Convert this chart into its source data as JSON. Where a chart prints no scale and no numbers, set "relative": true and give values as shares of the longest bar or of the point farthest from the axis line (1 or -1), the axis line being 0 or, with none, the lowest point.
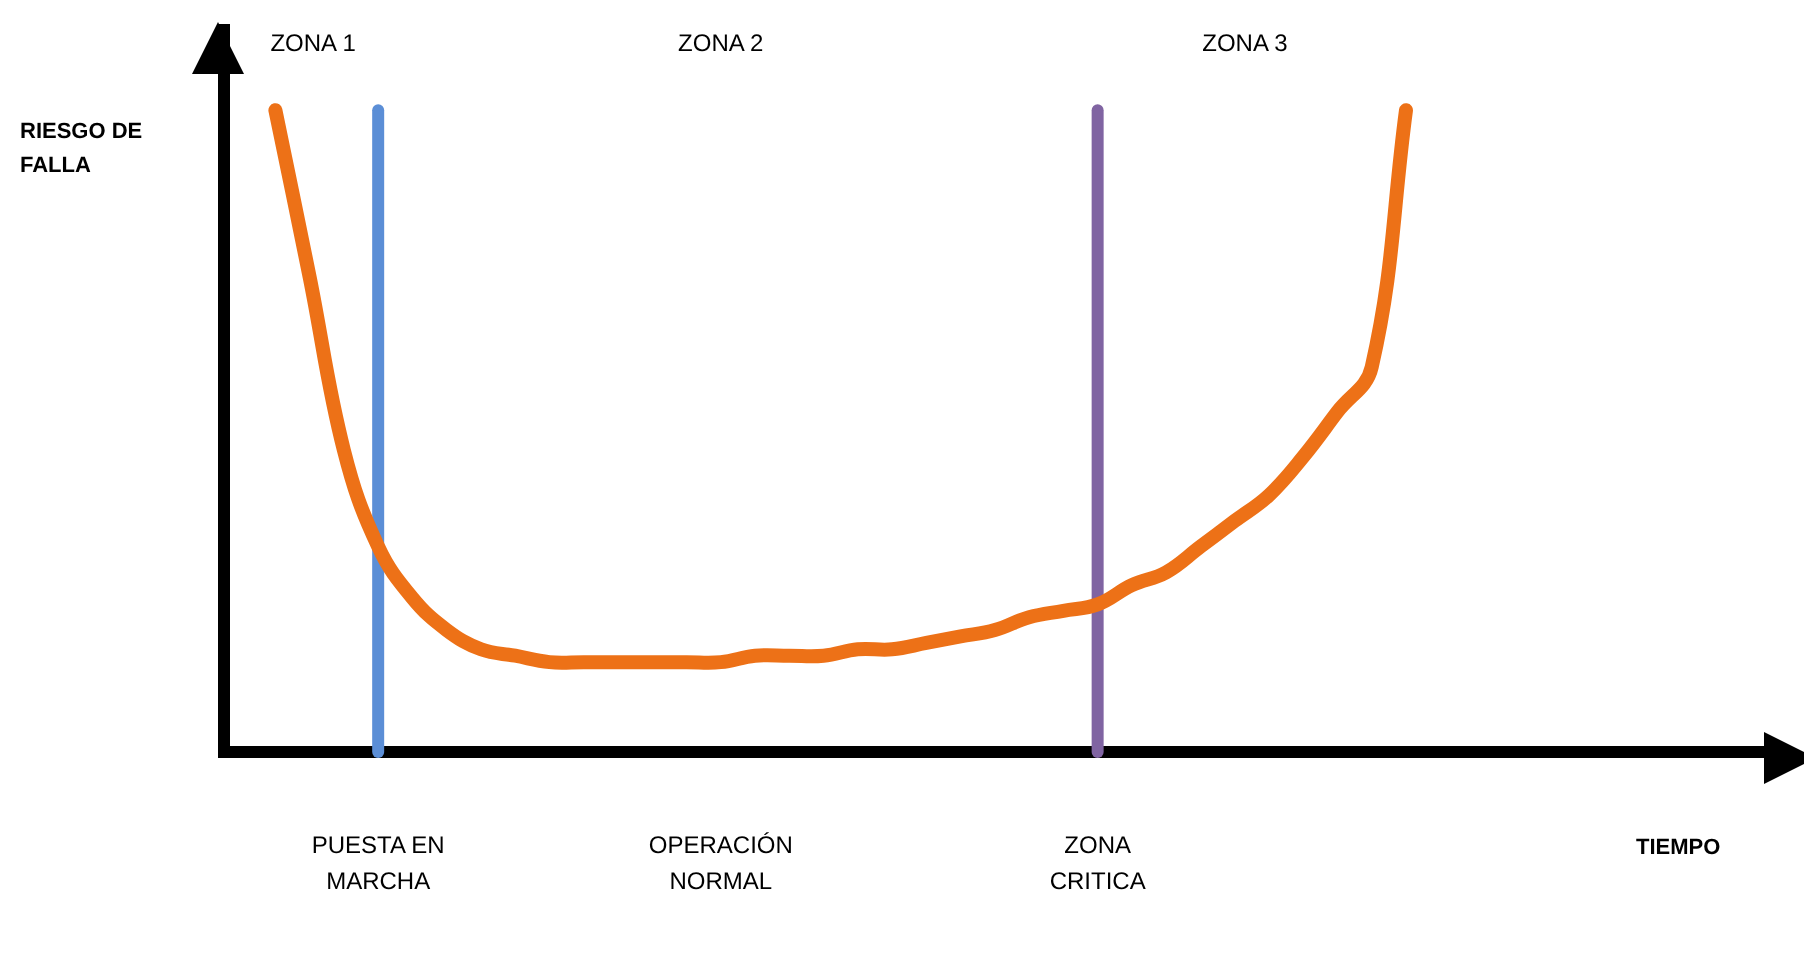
{
  "chart_data": {
    "type": "line",
    "relative": true,
    "categories": [
      null,
      null,
      null,
      "PUESTA EN MARCHA",
      null,
      null,
      null,
      null,
      null,
      null,
      null,
      null,
      null,
      "OPERACIÓN NORMAL",
      null,
      null,
      null,
      null,
      null,
      null,
      null,
      null,
      null,
      null,
      "ZONA CRITICA",
      null,
      null,
      null,
      null,
      null,
      null,
      null,
      null,
      null
    ],
    "series": [
      {
        "color": "#ed7117",
        "values": [
          1.0,
          0.74,
          0.47,
          0.32,
          0.24,
          0.19,
          0.16,
          0.15,
          0.14,
          0.14,
          0.14,
          0.14,
          0.14,
          0.14,
          0.15,
          0.15,
          0.15,
          0.16,
          0.16,
          0.17,
          0.18,
          0.19,
          0.21,
          0.22,
          0.23,
          0.26,
          0.28,
          0.32,
          0.36,
          0.4,
          0.46,
          0.53,
          0.6,
          1.0
        ]
      }
    ],
    "ref_lines": [
      {
        "axis": "x",
        "value": "PUESTA EN MARCHA",
        "color": "#5b8ed6"
      },
      {
        "axis": "x",
        "value": "ZONA CRITICA",
        "color": "#8064a2"
      }
    ],
    "annotations": [
      "ZONA 1",
      "ZONA 2",
      "ZONA 3",
      "RIESGO DE FALLA",
      "TIEMPO"
    ],
    "marker": "none",
    "line_style": "solid",
    "grid": false,
    "legend": false
  }
}
